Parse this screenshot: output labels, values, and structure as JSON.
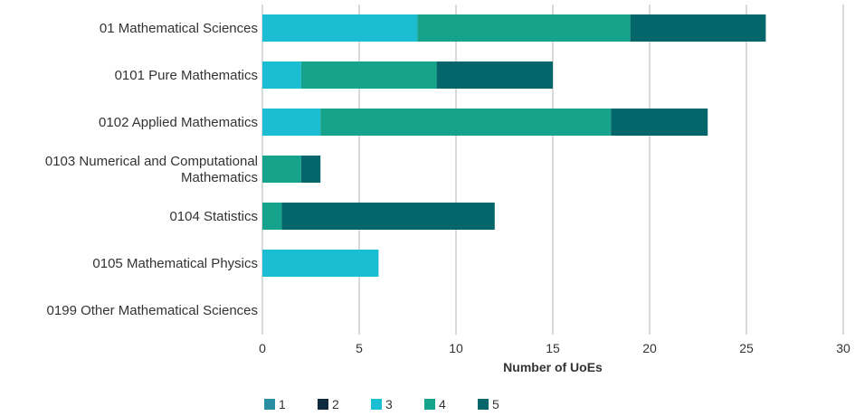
{
  "chart_data": {
    "type": "bar",
    "orientation": "horizontal",
    "stacked": true,
    "categories": [
      "01 Mathematical Sciences",
      "0101 Pure Mathematics",
      "0102 Applied Mathematics",
      "0103 Numerical and Computational Mathematics",
      "0104 Statistics",
      "0105 Mathematical Physics",
      "0199 Other Mathematical Sciences"
    ],
    "series": [
      {
        "name": "1",
        "color": "#2a8fa3",
        "values": [
          0,
          0,
          0,
          0,
          0,
          0,
          0
        ]
      },
      {
        "name": "2",
        "color": "#0d2a3f",
        "values": [
          0,
          0,
          0,
          0,
          0,
          0,
          0
        ]
      },
      {
        "name": "3",
        "color": "#1bbdd3",
        "values": [
          8,
          2,
          3,
          0,
          0,
          6,
          0
        ]
      },
      {
        "name": "4",
        "color": "#16a38c",
        "values": [
          11,
          7,
          15,
          2,
          1,
          0,
          0
        ]
      },
      {
        "name": "5",
        "color": "#03666a",
        "values": [
          7,
          6,
          5,
          1,
          11,
          0,
          0
        ]
      }
    ],
    "xlabel": "Number of UoEs",
    "ylabel": "",
    "xlim": [
      0,
      30
    ],
    "xticks": [
      0,
      5,
      10,
      15,
      20,
      25,
      30
    ],
    "grid": true,
    "legend_position": "bottom-left"
  }
}
